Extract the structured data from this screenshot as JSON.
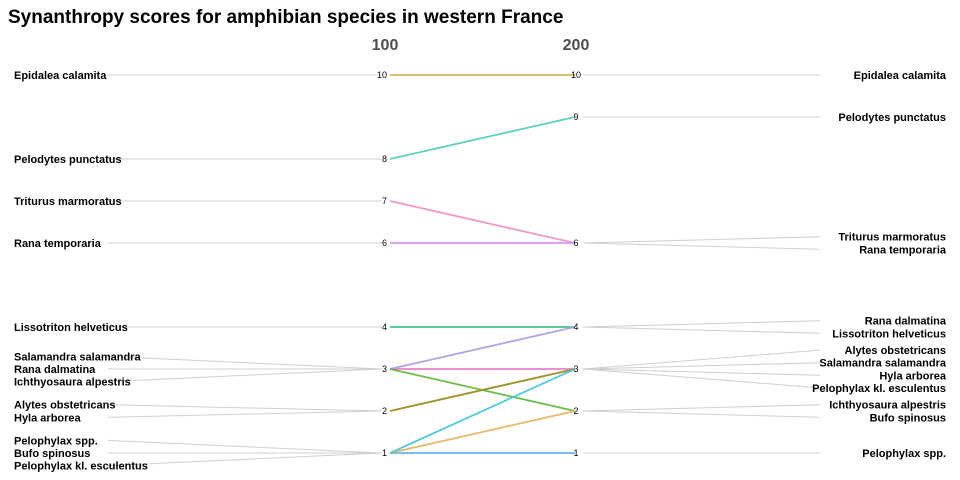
{
  "chart_data": {
    "type": "line",
    "title": "Synanthropy scores for amphibian species in western France",
    "x": [
      "100",
      "200"
    ],
    "series": [
      {
        "name": "Epidalea calamita",
        "values": [
          10,
          10
        ],
        "color": "#c9b048"
      },
      {
        "name": "Pelodytes punctatus",
        "values": [
          8,
          9
        ],
        "color": "#4ec9b8"
      },
      {
        "name": "Triturus marmoratus",
        "values": [
          7,
          6
        ],
        "color": "#ef8fc4"
      },
      {
        "name": "Rana temporaria",
        "values": [
          6,
          6
        ],
        "color": "#d48cf2"
      },
      {
        "name": "Lissotriton helveticus",
        "values": [
          4,
          4
        ],
        "color": "#2fbf7a"
      },
      {
        "name": "Salamandra salamandra",
        "values": [
          3,
          3
        ],
        "color": "#ef6fc8"
      },
      {
        "name": "Rana dalmatina",
        "values": [
          3,
          4
        ],
        "color": "#a89be6"
      },
      {
        "name": "Ichthyosaura alpestris",
        "values": [
          3,
          2
        ],
        "color": "#5cb83a"
      },
      {
        "name": "Alytes obstetricans",
        "values": [
          2,
          3
        ],
        "color": "#a89828"
      },
      {
        "name": "Hyla arborea",
        "values": [
          2,
          3
        ],
        "color": "#9d9530"
      },
      {
        "name": "Pelophylax spp.",
        "values": [
          1,
          1
        ],
        "color": "#5aa8f0"
      },
      {
        "name": "Bufo spinosus",
        "values": [
          1,
          2
        ],
        "color": "#e8b05a"
      },
      {
        "name": "Pelophylax kl. esculentus",
        "values": [
          1,
          3
        ],
        "color": "#3fc4d8"
      }
    ],
    "left_labels": [
      {
        "text": "Epidalea calamita",
        "value": 10
      },
      {
        "text": "Pelodytes punctatus",
        "value": 8
      },
      {
        "text": "Triturus marmoratus",
        "value": 7
      },
      {
        "text": "Rana temporaria",
        "value": 6
      },
      {
        "text": "Lissotriton helveticus",
        "value": 4
      },
      {
        "text": "Salamandra salamandra",
        "value": 3,
        "offset": 1
      },
      {
        "text": "Rana dalmatina",
        "value": 3,
        "offset": 0
      },
      {
        "text": "Ichthyosaura alpestris",
        "value": 3,
        "offset": -1
      },
      {
        "text": "Alytes obstetricans",
        "value": 2,
        "offset": 0.5
      },
      {
        "text": "Hyla arborea",
        "value": 2,
        "offset": -0.5
      },
      {
        "text": "Pelophylax spp.",
        "value": 1,
        "offset": 1
      },
      {
        "text": "Bufo spinosus",
        "value": 1,
        "offset": 0
      },
      {
        "text": "Pelophylax kl. esculentus",
        "value": 1,
        "offset": -1
      }
    ],
    "right_labels": [
      {
        "text": "Epidalea calamita",
        "value": 10
      },
      {
        "text": "Pelodytes punctatus",
        "value": 9
      },
      {
        "text": "Triturus marmoratus",
        "value": 6,
        "offset": 0.5
      },
      {
        "text": "Rana temporaria",
        "value": 6,
        "offset": -0.5
      },
      {
        "text": "Rana dalmatina",
        "value": 4,
        "offset": 0.5
      },
      {
        "text": "Lissotriton helveticus",
        "value": 4,
        "offset": -0.5
      },
      {
        "text": "Alytes obstetricans",
        "value": 3,
        "offset": 1.5
      },
      {
        "text": "Salamandra salamandra",
        "value": 3,
        "offset": 0.5
      },
      {
        "text": "Hyla arborea",
        "value": 3,
        "offset": -0.5
      },
      {
        "text": "Pelophylax kl. esculentus",
        "value": 3,
        "offset": -1.5
      },
      {
        "text": "Ichthyosaura alpestris",
        "value": 2,
        "offset": 0.5
      },
      {
        "text": "Bufo spinosus",
        "value": 2,
        "offset": -0.5
      },
      {
        "text": "Pelophylax spp.",
        "value": 1
      }
    ],
    "value_ticks": {
      "100": [
        10,
        8,
        7,
        6,
        4,
        3,
        2,
        1
      ],
      "200": [
        10,
        9,
        6,
        4,
        3,
        2,
        1
      ]
    },
    "ylim": [
      1,
      10
    ],
    "grid": false,
    "legend": "none"
  }
}
